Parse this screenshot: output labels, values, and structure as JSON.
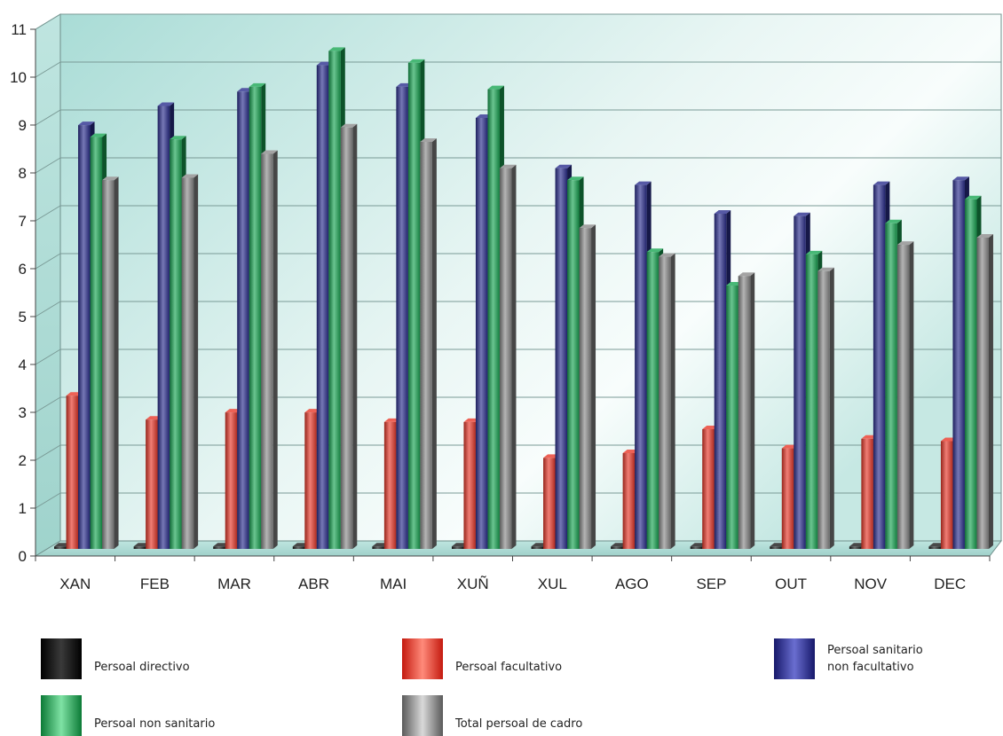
{
  "chart_data": {
    "type": "bar",
    "categories": [
      "XAN",
      "FEB",
      "MAR",
      "ABR",
      "MAI",
      "XUÑ",
      "XUL",
      "AGO",
      "SEP",
      "OUT",
      "NOV",
      "DEC"
    ],
    "yticks": [
      "0",
      "1",
      "2",
      "3",
      "4",
      "5",
      "6",
      "7",
      "8",
      "9",
      "10",
      "11"
    ],
    "ylim": [
      0,
      11
    ],
    "grid": true,
    "three_d": true,
    "legend_position": "bottom",
    "series": [
      {
        "name": "Persoal directivo",
        "color": "#1a1a1a",
        "values": [
          0.05,
          0.05,
          0.05,
          0.05,
          0.05,
          0.05,
          0.05,
          0.05,
          0.05,
          0.05,
          0.05,
          0.05
        ]
      },
      {
        "name": "Persoal facultativo",
        "color": "#e8392a",
        "values": [
          3.2,
          2.7,
          2.85,
          2.85,
          2.65,
          2.65,
          1.9,
          2.0,
          2.5,
          2.1,
          2.3,
          2.25
        ]
      },
      {
        "name": "Persoal sanitario non facultativo",
        "color": "#2c2f8f",
        "values": [
          8.85,
          9.25,
          9.55,
          10.1,
          9.65,
          9.0,
          7.95,
          7.6,
          7.0,
          6.95,
          7.6,
          7.7
        ]
      },
      {
        "name": "Persoal non sanitario",
        "color": "#1aa654",
        "values": [
          8.6,
          8.55,
          9.65,
          10.4,
          10.15,
          9.6,
          7.7,
          6.2,
          5.5,
          6.15,
          6.8,
          7.3
        ]
      },
      {
        "name": "Total persoal de cadro",
        "color": "#8c8c8c",
        "values": [
          7.7,
          7.75,
          8.25,
          8.8,
          8.5,
          7.95,
          6.7,
          6.1,
          5.7,
          5.8,
          6.35,
          6.5
        ]
      }
    ]
  },
  "legend": {
    "items": [
      {
        "label": "Persoal directivo"
      },
      {
        "label": "Persoal facultativo"
      },
      {
        "label": "Persoal sanitario\nnon facultativo"
      },
      {
        "label": "Persoal non sanitario"
      },
      {
        "label": "Total persoal de cadro"
      }
    ]
  }
}
